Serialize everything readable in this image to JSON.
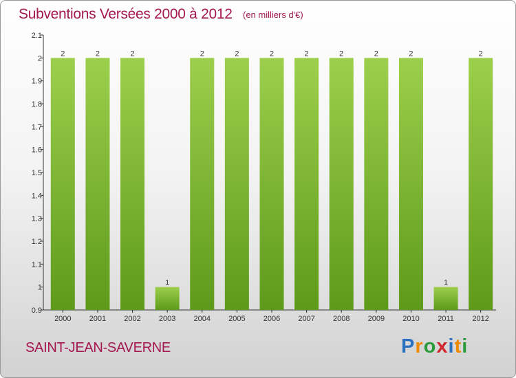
{
  "title": "Subventions Versées 2000 à 2012",
  "unit": "(en milliers d'€)",
  "commune": "SAINT-JEAN-SAVERNE",
  "logo": {
    "letters": [
      "P",
      "r",
      "o",
      "x",
      "i",
      "t",
      "i"
    ],
    "colors": [
      "#2a6fc0",
      "#f08a00",
      "#2a9a3a",
      "#d0252d",
      "#2a6fc0",
      "#f08a00",
      "#2a9a3a"
    ]
  },
  "colors": {
    "bar": "#7cbb2e",
    "bar_light": "#9ccf4c",
    "bar_dark": "#5e9a1a",
    "title": "#a5184f"
  },
  "chart_data": {
    "type": "bar",
    "categories": [
      "2000",
      "2001",
      "2002",
      "2003",
      "2004",
      "2005",
      "2006",
      "2007",
      "2008",
      "2009",
      "2010",
      "2011",
      "2012"
    ],
    "values": [
      2,
      2,
      2,
      1,
      2,
      2,
      2,
      2,
      2,
      2,
      2,
      1,
      2
    ],
    "data_labels": [
      "2",
      "2",
      "2",
      "1",
      "2",
      "2",
      "2",
      "2",
      "2",
      "2",
      "2",
      "1",
      "2"
    ],
    "yticks": [
      "0.9",
      "1",
      "1.1",
      "1.2",
      "1.3",
      "1.4",
      "1.5",
      "1.6",
      "1.7",
      "1.8",
      "1.9",
      "2",
      "2.1"
    ],
    "ylim": [
      0.9,
      2.1
    ],
    "grid": false,
    "legend": "none"
  }
}
